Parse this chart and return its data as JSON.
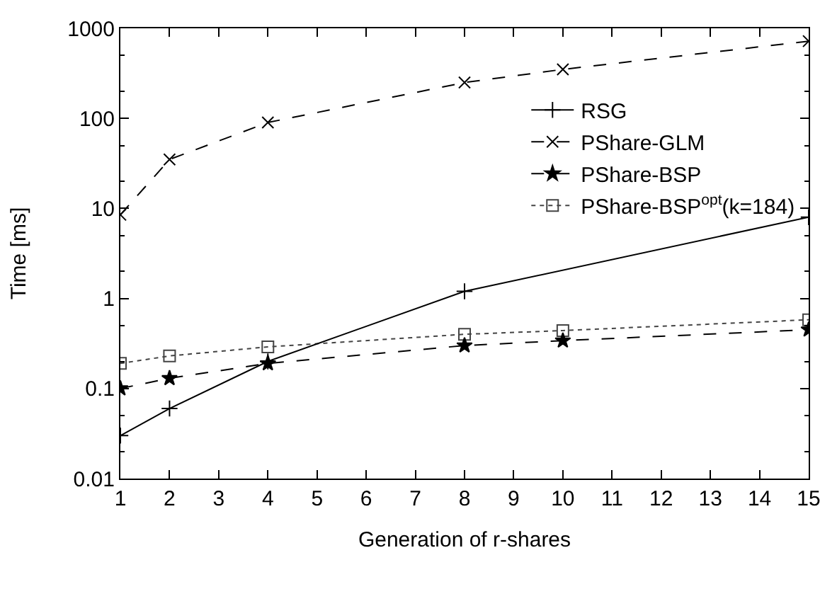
{
  "chart_data": {
    "type": "line",
    "xlabel": "Generation of r-shares",
    "ylabel": "Time [ms]",
    "log": "y",
    "xlim": [
      1,
      15
    ],
    "xticks": [
      1,
      2,
      3,
      4,
      5,
      6,
      7,
      8,
      9,
      10,
      11,
      12,
      13,
      14,
      15
    ],
    "ylim": [
      0.01,
      1000
    ],
    "yticks": [
      0.01,
      0.1,
      1,
      10,
      100,
      1000
    ],
    "legend": "top right",
    "series": [
      {
        "name": "RSG",
        "color": "#000000",
        "marker": "cross",
        "line_style": "solid",
        "x": [
          1,
          2,
          4,
          8,
          15
        ],
        "values": [
          0.03,
          0.06,
          0.2,
          1.2,
          8
        ]
      },
      {
        "name": "PShare-GLM",
        "color": "#000000",
        "marker": "x",
        "line_style": "dashed",
        "x": [
          1,
          2,
          4,
          8,
          10,
          15
        ],
        "values": [
          8.5,
          35,
          90,
          250,
          350,
          720
        ]
      },
      {
        "name": "PShare-BSP",
        "color": "#000000",
        "marker": "star",
        "line_style": "dashed",
        "x": [
          1,
          2,
          4,
          8,
          10,
          15
        ],
        "values": [
          0.1,
          0.13,
          0.19,
          0.3,
          0.34,
          0.45
        ]
      },
      {
        "name": "PShare-BSP$^{opt}$(k=184)",
        "color": "#444444",
        "marker": "square",
        "line_style": "dotted",
        "x": [
          1,
          2,
          4,
          8,
          10,
          15
        ],
        "values": [
          0.19,
          0.23,
          0.29,
          0.4,
          0.44,
          0.58
        ]
      }
    ]
  }
}
